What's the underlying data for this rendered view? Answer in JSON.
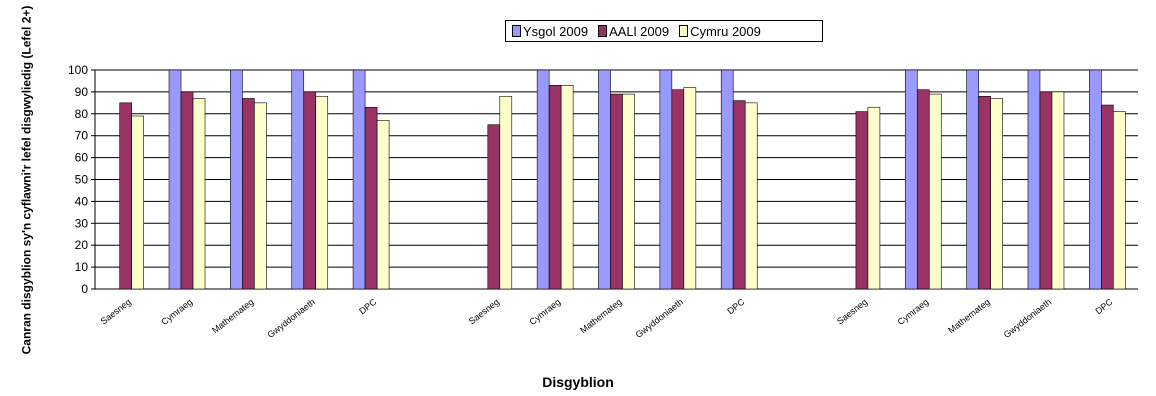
{
  "chart_data": {
    "type": "bar",
    "title": "",
    "xlabel": "Disgyblion",
    "ylabel": "Canran disgyblion sy'n cyflawni'r lefel disgwyliedig (Lefel 2+)",
    "ylim": [
      0,
      100
    ],
    "yticks": [
      0,
      10,
      20,
      30,
      40,
      50,
      60,
      70,
      80,
      90,
      100
    ],
    "grid": true,
    "legend_position": "top",
    "categories": [
      "Saesneg",
      "Cymraeg",
      "Mathemateg",
      "Gwyddoniaeth",
      "DPC",
      "",
      "Saesneg",
      "Cymraeg",
      "Mathemateg",
      "Gwyddoniaeth",
      "DPC",
      "",
      "Saesneg",
      "Cymraeg",
      "Mathemateg",
      "Gwyddoniaeth",
      "DPC"
    ],
    "series": [
      {
        "name": "Ysgol 2009",
        "color": "#9999ff",
        "values": [
          null,
          100,
          100,
          100,
          100,
          null,
          null,
          100,
          100,
          100,
          100,
          null,
          null,
          100,
          100,
          100,
          100
        ]
      },
      {
        "name": "AALl 2009",
        "color": "#993366",
        "values": [
          85,
          90,
          87,
          90,
          83,
          null,
          75,
          93,
          89,
          91,
          86,
          null,
          81,
          91,
          88,
          90,
          84
        ]
      },
      {
        "name": "Cymru 2009",
        "color": "#ffffcc",
        "values": [
          79,
          87,
          85,
          88,
          77,
          null,
          88,
          93,
          89,
          92,
          85,
          null,
          83,
          89,
          87,
          90,
          81
        ]
      }
    ]
  }
}
